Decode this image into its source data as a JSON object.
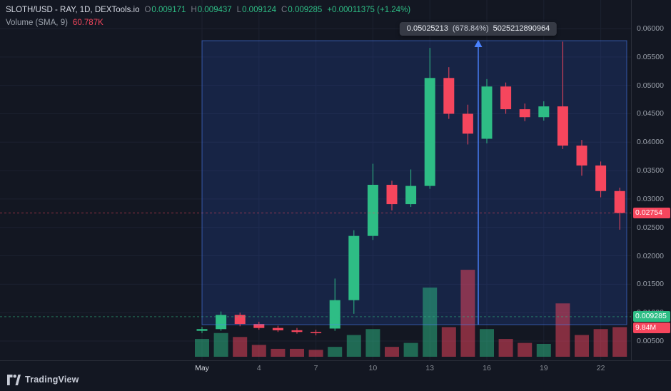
{
  "header": {
    "symbol_title": "SLOTH/USD - RAY, 1D, DEXTools.io",
    "ohlc": {
      "o_label": "O",
      "o": "0.009171",
      "h_label": "H",
      "h": "0.009437",
      "l_label": "L",
      "l": "0.009124",
      "c_label": "C",
      "c": "0.009285"
    },
    "change": "+0.00011375 (+1.24%)"
  },
  "volume_row": {
    "label": "Volume (SMA, 9)",
    "value": "60.787K"
  },
  "measure": {
    "price": "0.05025213",
    "percent": "(678.84%)",
    "bars_info": "5025212890964"
  },
  "badges": [
    {
      "label": "0.02754",
      "kind": "down",
      "price": 0.02754
    },
    {
      "label": "0.009285",
      "kind": "up",
      "price": 0.009285
    },
    {
      "label": "9.84M",
      "kind": "down",
      "price": null
    }
  ],
  "footer": {
    "brand": "TradingView"
  },
  "chart_data": {
    "type": "candlestick",
    "title": "SLOTH/USD daily candles with volume overlay",
    "legend_position": "top-left",
    "grid": true,
    "y_axis": {
      "range": [
        0.005,
        0.06
      ],
      "ticks": [
        {
          "value": 0.06,
          "label": "0.06000"
        },
        {
          "value": 0.055,
          "label": "0.05500"
        },
        {
          "value": 0.05,
          "label": "0.05000"
        },
        {
          "value": 0.045,
          "label": "0.04500"
        },
        {
          "value": 0.04,
          "label": "0.04000"
        },
        {
          "value": 0.035,
          "label": "0.03500"
        },
        {
          "value": 0.03,
          "label": "0.03000"
        },
        {
          "value": 0.025,
          "label": "0.02500"
        },
        {
          "value": 0.02,
          "label": "0.02000"
        },
        {
          "value": 0.015,
          "label": "0.01500"
        },
        {
          "value": 0.01,
          "label": "0.01000"
        },
        {
          "value": 0.005,
          "label": "0.00500"
        }
      ]
    },
    "x_axis": {
      "ticks": [
        {
          "label": "May",
          "index": 0,
          "major": true
        },
        {
          "label": "4",
          "index": 3,
          "major": false
        },
        {
          "label": "7",
          "index": 6,
          "major": false
        },
        {
          "label": "10",
          "index": 9,
          "major": false
        },
        {
          "label": "13",
          "index": 12,
          "major": false
        },
        {
          "label": "16",
          "index": 15,
          "major": false
        },
        {
          "label": "19",
          "index": 18,
          "major": false
        },
        {
          "label": "22",
          "index": 21,
          "major": false
        }
      ]
    },
    "colors": {
      "up": "#2ebd85",
      "down": "#f6465d",
      "grid": "#1c2130",
      "background": "#131722",
      "selection_fill": "rgba(49,106,255,0.16)",
      "selection_line": "#4a82ff"
    },
    "price_lines": {
      "current": {
        "value": 0.009285,
        "kind": "up"
      },
      "last_close": {
        "value": 0.02754,
        "kind": "down"
      }
    },
    "candles": [
      {
        "d": "May 1",
        "o": 0.0068,
        "h": 0.0075,
        "l": 0.0064,
        "c": 0.0071,
        "v": 9
      },
      {
        "d": "May 2",
        "o": 0.0071,
        "h": 0.0102,
        "l": 0.0068,
        "c": 0.0096,
        "v": 12
      },
      {
        "d": "May 3",
        "o": 0.0096,
        "h": 0.01,
        "l": 0.0076,
        "c": 0.008,
        "v": 10
      },
      {
        "d": "May 4",
        "o": 0.008,
        "h": 0.0084,
        "l": 0.007,
        "c": 0.0073,
        "v": 6
      },
      {
        "d": "May 5",
        "o": 0.0073,
        "h": 0.0077,
        "l": 0.0066,
        "c": 0.0069,
        "v": 4
      },
      {
        "d": "May 6",
        "o": 0.0069,
        "h": 0.0073,
        "l": 0.0063,
        "c": 0.0066,
        "v": 4
      },
      {
        "d": "May 7",
        "o": 0.0066,
        "h": 0.007,
        "l": 0.006,
        "c": 0.0064,
        "v": 3.5
      },
      {
        "d": "May 8",
        "o": 0.0072,
        "h": 0.016,
        "l": 0.0068,
        "c": 0.0122,
        "v": 5
      },
      {
        "d": "May 9",
        "o": 0.0122,
        "h": 0.0245,
        "l": 0.0098,
        "c": 0.0235,
        "v": 11
      },
      {
        "d": "May 10",
        "o": 0.0235,
        "h": 0.0362,
        "l": 0.0228,
        "c": 0.0325,
        "v": 14
      },
      {
        "d": "May 11",
        "o": 0.0325,
        "h": 0.0332,
        "l": 0.028,
        "c": 0.0291,
        "v": 5
      },
      {
        "d": "May 12",
        "o": 0.0291,
        "h": 0.0352,
        "l": 0.0286,
        "c": 0.0323,
        "v": 7
      },
      {
        "d": "May 13",
        "o": 0.0323,
        "h": 0.0566,
        "l": 0.0318,
        "c": 0.0513,
        "v": 35
      },
      {
        "d": "May 14",
        "o": 0.0513,
        "h": 0.0532,
        "l": 0.0441,
        "c": 0.045,
        "v": 15
      },
      {
        "d": "May 15",
        "o": 0.045,
        "h": 0.0466,
        "l": 0.0396,
        "c": 0.0415,
        "v": 44
      },
      {
        "d": "May 16",
        "o": 0.0406,
        "h": 0.0511,
        "l": 0.0398,
        "c": 0.0498,
        "v": 14
      },
      {
        "d": "May 17",
        "o": 0.0498,
        "h": 0.0505,
        "l": 0.045,
        "c": 0.0458,
        "v": 9
      },
      {
        "d": "May 18",
        "o": 0.0458,
        "h": 0.0468,
        "l": 0.0437,
        "c": 0.0444,
        "v": 7
      },
      {
        "d": "May 19",
        "o": 0.0444,
        "h": 0.0472,
        "l": 0.0438,
        "c": 0.0463,
        "v": 6.5
      },
      {
        "d": "May 20",
        "o": 0.0463,
        "h": 0.0577,
        "l": 0.0388,
        "c": 0.0394,
        "v": 27
      },
      {
        "d": "May 21",
        "o": 0.0394,
        "h": 0.0404,
        "l": 0.0341,
        "c": 0.0359,
        "v": 11
      },
      {
        "d": "May 22",
        "o": 0.0359,
        "h": 0.0366,
        "l": 0.0303,
        "c": 0.0314,
        "v": 14
      },
      {
        "d": "May 23",
        "o": 0.0314,
        "h": 0.032,
        "l": 0.0246,
        "c": 0.02754,
        "v": 15
      }
    ]
  }
}
